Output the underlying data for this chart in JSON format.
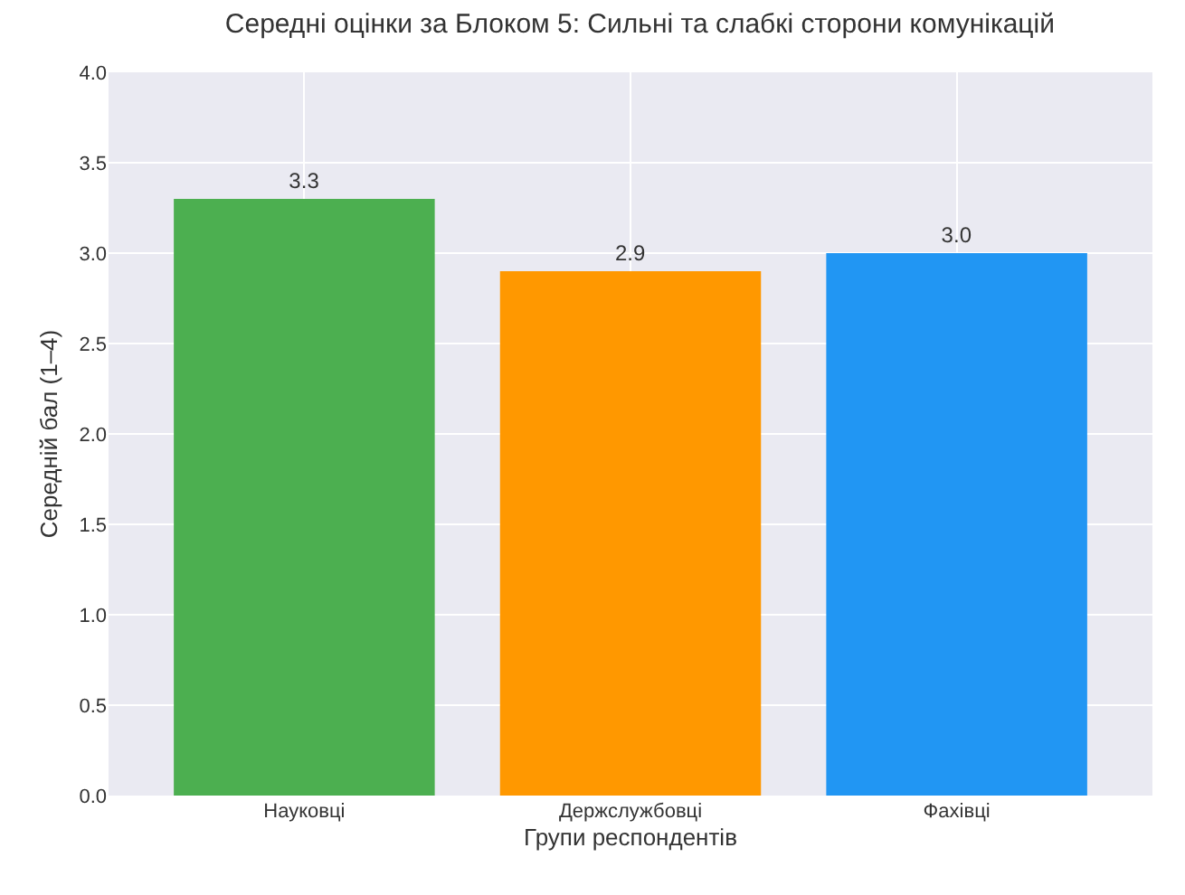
{
  "chart_data": {
    "type": "bar",
    "title": "Середні оцінки за Блоком 5: Сильні та слабкі сторони комунікацій",
    "xlabel": "Групи респондентів",
    "ylabel": "Середній бал (1–4)",
    "categories": [
      "Науковці",
      "Держслужбовці",
      "Фахівці"
    ],
    "values": [
      3.3,
      2.9,
      3.0
    ],
    "colors": [
      "#4caf50",
      "#ff9800",
      "#2196f3"
    ],
    "ylim": [
      0,
      4
    ],
    "yticks": [
      {
        "value": 0,
        "label": "0.0"
      },
      {
        "value": 0.5,
        "label": "0.5"
      },
      {
        "value": 1,
        "label": "1.0"
      },
      {
        "value": 1.5,
        "label": "1.5"
      },
      {
        "value": 2,
        "label": "2.0"
      },
      {
        "value": 2.5,
        "label": "2.5"
      },
      {
        "value": 3,
        "label": "3.0"
      },
      {
        "value": 3.5,
        "label": "3.5"
      },
      {
        "value": 4,
        "label": "4.0"
      }
    ],
    "value_labels": [
      "3.3",
      "2.9",
      "3.0"
    ],
    "grid": true
  }
}
